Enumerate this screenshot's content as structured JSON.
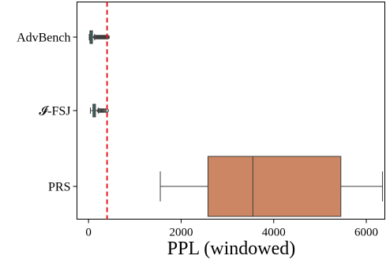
{
  "chart_data": {
    "type": "boxplot",
    "orientation": "horizontal",
    "title": "",
    "xlabel": "PPL (windowed)",
    "ylabel": "",
    "xlim": [
      -250,
      6400
    ],
    "x_ticks": [
      0,
      2000,
      4000,
      6000
    ],
    "x_tick_labels": [
      "0",
      "2000",
      "4000",
      "6000"
    ],
    "categories": [
      "AdvBench",
      "𝓘-FSJ",
      "PRS"
    ],
    "boxes": [
      {
        "category": "AdvBench",
        "whisker_low": 15,
        "q1": 30,
        "median": 55,
        "q3": 85,
        "whisker_high": 130,
        "outliers": [
          145,
          160,
          175,
          190,
          205,
          220,
          235,
          250,
          265,
          280,
          295,
          310,
          325,
          340,
          355,
          370,
          385,
          400,
          415
        ],
        "color": "#3a8f85"
      },
      {
        "category": "𝓘-FSJ",
        "whisker_low": 40,
        "q1": 95,
        "median": 120,
        "q3": 150,
        "whisker_high": 215,
        "outliers": [
          225,
          245,
          265,
          285,
          305,
          330,
          360,
          395
        ],
        "color": "#3a8f85"
      },
      {
        "category": "PRS",
        "whisker_low": 1550,
        "q1": 2580,
        "median": 3550,
        "q3": 5450,
        "whisker_high": 6350,
        "outliers": [],
        "color": "#cd8663"
      }
    ],
    "reference_line": {
      "x": 400,
      "color": "#e8191f",
      "style": "dashed"
    },
    "grid": false,
    "legend": "none"
  }
}
